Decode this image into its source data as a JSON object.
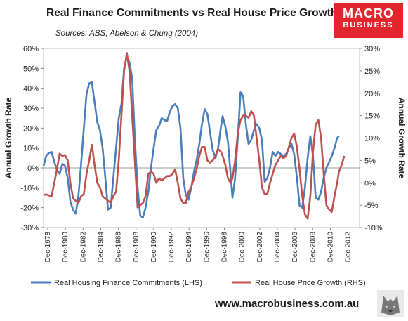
{
  "header": {
    "title": "Real Finance Commitments vs Real House Price Growth",
    "subtitle": "Sources: ABS; Abelson & Chung (2004)"
  },
  "logo": {
    "line1": "MACRO",
    "line2": "BUSINESS",
    "color": "#e3262d"
  },
  "footer": {
    "url": "www.macrobusiness.com.au"
  },
  "chart_data": {
    "type": "line",
    "xlim": [
      1978,
      2013.3
    ],
    "x_ticks": [
      "Dec-1978",
      "Dec-1980",
      "Dec-1982",
      "Dec-1984",
      "Dec-1986",
      "Dec-1988",
      "Dec-1990",
      "Dec-1992",
      "Dec-1994",
      "Dec-1996",
      "Dec-1998",
      "Dec-2000",
      "Dec-2002",
      "Dec-2004",
      "Dec-2006",
      "Dec-2008",
      "Dec-2010",
      "Dec-2012"
    ],
    "ylabel_left": "Annual Growth Rate",
    "ylabel_right": "Annual Growth Rate",
    "ylim_left": [
      -30,
      60
    ],
    "ylim_right": [
      -10,
      30
    ],
    "y_ticks_left": [
      "-30%",
      "-20%",
      "-10%",
      "0%",
      "10%",
      "20%",
      "30%",
      "40%",
      "50%",
      "60%"
    ],
    "y_ticks_right": [
      "-10%",
      "-5%",
      "0%",
      "5%",
      "10%",
      "15%",
      "20%",
      "25%",
      "30%"
    ],
    "grid": false,
    "legend": "bottom",
    "series": [
      {
        "name": "Real Housing Finance Commitments (LHS)",
        "axis": "left",
        "color": "#4a7ebb",
        "points": [
          [
            1978.0,
            1
          ],
          [
            1978.3,
            6
          ],
          [
            1978.6,
            7.5
          ],
          [
            1978.9,
            8
          ],
          [
            1979.2,
            3
          ],
          [
            1979.5,
            -1
          ],
          [
            1979.8,
            -3
          ],
          [
            1980.1,
            2
          ],
          [
            1980.4,
            1
          ],
          [
            1980.7,
            -5
          ],
          [
            1981.0,
            -17
          ],
          [
            1981.3,
            -21
          ],
          [
            1981.6,
            -23
          ],
          [
            1981.9,
            -14
          ],
          [
            1982.2,
            2
          ],
          [
            1982.5,
            20
          ],
          [
            1982.8,
            37
          ],
          [
            1983.1,
            42.5
          ],
          [
            1983.4,
            43
          ],
          [
            1983.7,
            33
          ],
          [
            1984.0,
            23
          ],
          [
            1984.3,
            19
          ],
          [
            1984.6,
            10
          ],
          [
            1984.9,
            -5
          ],
          [
            1985.2,
            -21
          ],
          [
            1985.5,
            -20
          ],
          [
            1985.8,
            -5
          ],
          [
            1986.1,
            10
          ],
          [
            1986.4,
            25
          ],
          [
            1986.7,
            32
          ],
          [
            1987.0,
            50
          ],
          [
            1987.3,
            56
          ],
          [
            1987.6,
            53
          ],
          [
            1987.9,
            45
          ],
          [
            1988.2,
            15
          ],
          [
            1988.5,
            -10
          ],
          [
            1988.8,
            -24
          ],
          [
            1989.1,
            -25
          ],
          [
            1989.4,
            -20
          ],
          [
            1989.7,
            -12
          ],
          [
            1990.0,
            0
          ],
          [
            1990.3,
            10
          ],
          [
            1990.6,
            19
          ],
          [
            1990.9,
            21
          ],
          [
            1991.2,
            25
          ],
          [
            1991.5,
            24
          ],
          [
            1991.8,
            23.5
          ],
          [
            1992.1,
            28
          ],
          [
            1992.4,
            31
          ],
          [
            1992.7,
            32
          ],
          [
            1993.0,
            30
          ],
          [
            1993.3,
            20
          ],
          [
            1993.6,
            -5
          ],
          [
            1993.9,
            -14
          ],
          [
            1994.2,
            -16
          ],
          [
            1994.5,
            -10
          ],
          [
            1994.8,
            -2
          ],
          [
            1995.1,
            4
          ],
          [
            1995.4,
            12
          ],
          [
            1995.7,
            22
          ],
          [
            1996.0,
            29.5
          ],
          [
            1996.3,
            27
          ],
          [
            1996.6,
            18
          ],
          [
            1996.9,
            9
          ],
          [
            1997.2,
            5
          ],
          [
            1997.5,
            10
          ],
          [
            1997.8,
            20
          ],
          [
            1998.0,
            26
          ],
          [
            1998.3,
            21
          ],
          [
            1998.6,
            13
          ],
          [
            1998.9,
            -3
          ],
          [
            1999.1,
            -15
          ],
          [
            1999.4,
            -5
          ],
          [
            1999.7,
            15
          ],
          [
            2000.0,
            38
          ],
          [
            2000.3,
            36
          ],
          [
            2000.6,
            22
          ],
          [
            2000.9,
            12
          ],
          [
            2001.2,
            14
          ],
          [
            2001.5,
            19
          ],
          [
            2001.8,
            22
          ],
          [
            2002.1,
            20
          ],
          [
            2002.4,
            14
          ],
          [
            2002.7,
            -7
          ],
          [
            2003.0,
            -5
          ],
          [
            2003.3,
            0
          ],
          [
            2003.6,
            8
          ],
          [
            2003.9,
            6
          ],
          [
            2004.2,
            8
          ],
          [
            2004.5,
            7
          ],
          [
            2004.8,
            6
          ],
          [
            2005.1,
            7
          ],
          [
            2005.4,
            10
          ],
          [
            2005.7,
            12
          ],
          [
            2006.0,
            7
          ],
          [
            2006.3,
            -5
          ],
          [
            2006.6,
            -19
          ],
          [
            2006.9,
            -20
          ],
          [
            2007.2,
            -10
          ],
          [
            2007.5,
            5
          ],
          [
            2007.8,
            16
          ],
          [
            2008.1,
            6
          ],
          [
            2008.4,
            -15
          ],
          [
            2008.7,
            -16
          ],
          [
            2009.0,
            -12
          ],
          [
            2009.3,
            -5
          ],
          [
            2009.6,
            0
          ],
          [
            2009.9,
            3
          ],
          [
            2010.2,
            6
          ],
          [
            2010.5,
            10
          ],
          [
            2010.8,
            15
          ],
          [
            2011.0,
            16
          ]
        ]
      },
      {
        "name": "Real House Price Growth (RHS)",
        "axis": "right",
        "color": "#c0504d",
        "points": [
          [
            1978.0,
            -2.7
          ],
          [
            1978.3,
            -2.6
          ],
          [
            1978.6,
            -2.8
          ],
          [
            1978.9,
            -3
          ],
          [
            1979.2,
            0
          ],
          [
            1979.5,
            3
          ],
          [
            1979.8,
            6.5
          ],
          [
            1980.1,
            6
          ],
          [
            1980.4,
            6.2
          ],
          [
            1980.7,
            5
          ],
          [
            1981.0,
            0
          ],
          [
            1981.3,
            -3.5
          ],
          [
            1981.6,
            -4
          ],
          [
            1981.9,
            -4.5
          ],
          [
            1982.2,
            -3
          ],
          [
            1982.5,
            -2.5
          ],
          [
            1982.8,
            2
          ],
          [
            1983.1,
            5
          ],
          [
            1983.4,
            8.5
          ],
          [
            1983.7,
            4
          ],
          [
            1984.0,
            0
          ],
          [
            1984.3,
            -1
          ],
          [
            1984.6,
            -3
          ],
          [
            1984.9,
            -3.5
          ],
          [
            1985.2,
            -4
          ],
          [
            1985.5,
            -4.5
          ],
          [
            1985.8,
            -3
          ],
          [
            1986.1,
            -2
          ],
          [
            1986.4,
            5
          ],
          [
            1986.7,
            15
          ],
          [
            1987.0,
            25
          ],
          [
            1987.3,
            29
          ],
          [
            1987.6,
            25
          ],
          [
            1987.9,
            15
          ],
          [
            1988.2,
            5
          ],
          [
            1988.5,
            -5.5
          ],
          [
            1988.8,
            -5
          ],
          [
            1989.1,
            -4.5
          ],
          [
            1989.4,
            -3
          ],
          [
            1989.7,
            2
          ],
          [
            1990.0,
            2.5
          ],
          [
            1990.3,
            2
          ],
          [
            1990.6,
            0
          ],
          [
            1990.9,
            1
          ],
          [
            1991.2,
            0.5
          ],
          [
            1991.5,
            1
          ],
          [
            1991.8,
            1.5
          ],
          [
            1992.1,
            1.5
          ],
          [
            1992.4,
            2
          ],
          [
            1992.7,
            3
          ],
          [
            1993.0,
            0
          ],
          [
            1993.3,
            -3.5
          ],
          [
            1993.6,
            -4.5
          ],
          [
            1993.9,
            -4.5
          ],
          [
            1994.2,
            -2
          ],
          [
            1994.5,
            -1
          ],
          [
            1994.8,
            1
          ],
          [
            1995.1,
            3
          ],
          [
            1995.4,
            6
          ],
          [
            1995.7,
            8
          ],
          [
            1996.0,
            8
          ],
          [
            1996.3,
            5
          ],
          [
            1996.6,
            4.5
          ],
          [
            1996.9,
            5
          ],
          [
            1997.2,
            6
          ],
          [
            1997.5,
            7.5
          ],
          [
            1997.8,
            7
          ],
          [
            1998.0,
            6
          ],
          [
            1998.3,
            4
          ],
          [
            1998.6,
            1
          ],
          [
            1998.9,
            0
          ],
          [
            1999.1,
            1
          ],
          [
            1999.4,
            5
          ],
          [
            1999.7,
            11
          ],
          [
            2000.0,
            14
          ],
          [
            2000.3,
            15
          ],
          [
            2000.6,
            15
          ],
          [
            2000.9,
            14.5
          ],
          [
            2001.2,
            16
          ],
          [
            2001.5,
            15
          ],
          [
            2001.8,
            10
          ],
          [
            2002.1,
            5
          ],
          [
            2002.4,
            -1
          ],
          [
            2002.7,
            -2.5
          ],
          [
            2003.0,
            -2.5
          ],
          [
            2003.3,
            0
          ],
          [
            2003.6,
            2
          ],
          [
            2003.9,
            4
          ],
          [
            2004.2,
            5
          ],
          [
            2004.5,
            6
          ],
          [
            2004.8,
            5.5
          ],
          [
            2005.1,
            6
          ],
          [
            2005.4,
            8
          ],
          [
            2005.7,
            10
          ],
          [
            2006.0,
            11
          ],
          [
            2006.3,
            8
          ],
          [
            2006.6,
            3
          ],
          [
            2006.9,
            -3
          ],
          [
            2007.2,
            -7
          ],
          [
            2007.5,
            -8
          ],
          [
            2007.8,
            -3
          ],
          [
            2008.1,
            7
          ],
          [
            2008.4,
            13
          ],
          [
            2008.7,
            14
          ],
          [
            2009.0,
            10
          ],
          [
            2009.3,
            2
          ],
          [
            2009.6,
            -5
          ],
          [
            2009.9,
            -6
          ],
          [
            2010.2,
            -6.5
          ],
          [
            2010.5,
            -3
          ],
          [
            2010.8,
            0
          ],
          [
            2011.0,
            2.5
          ],
          [
            2011.3,
            4
          ],
          [
            2011.6,
            6
          ]
        ]
      }
    ]
  }
}
